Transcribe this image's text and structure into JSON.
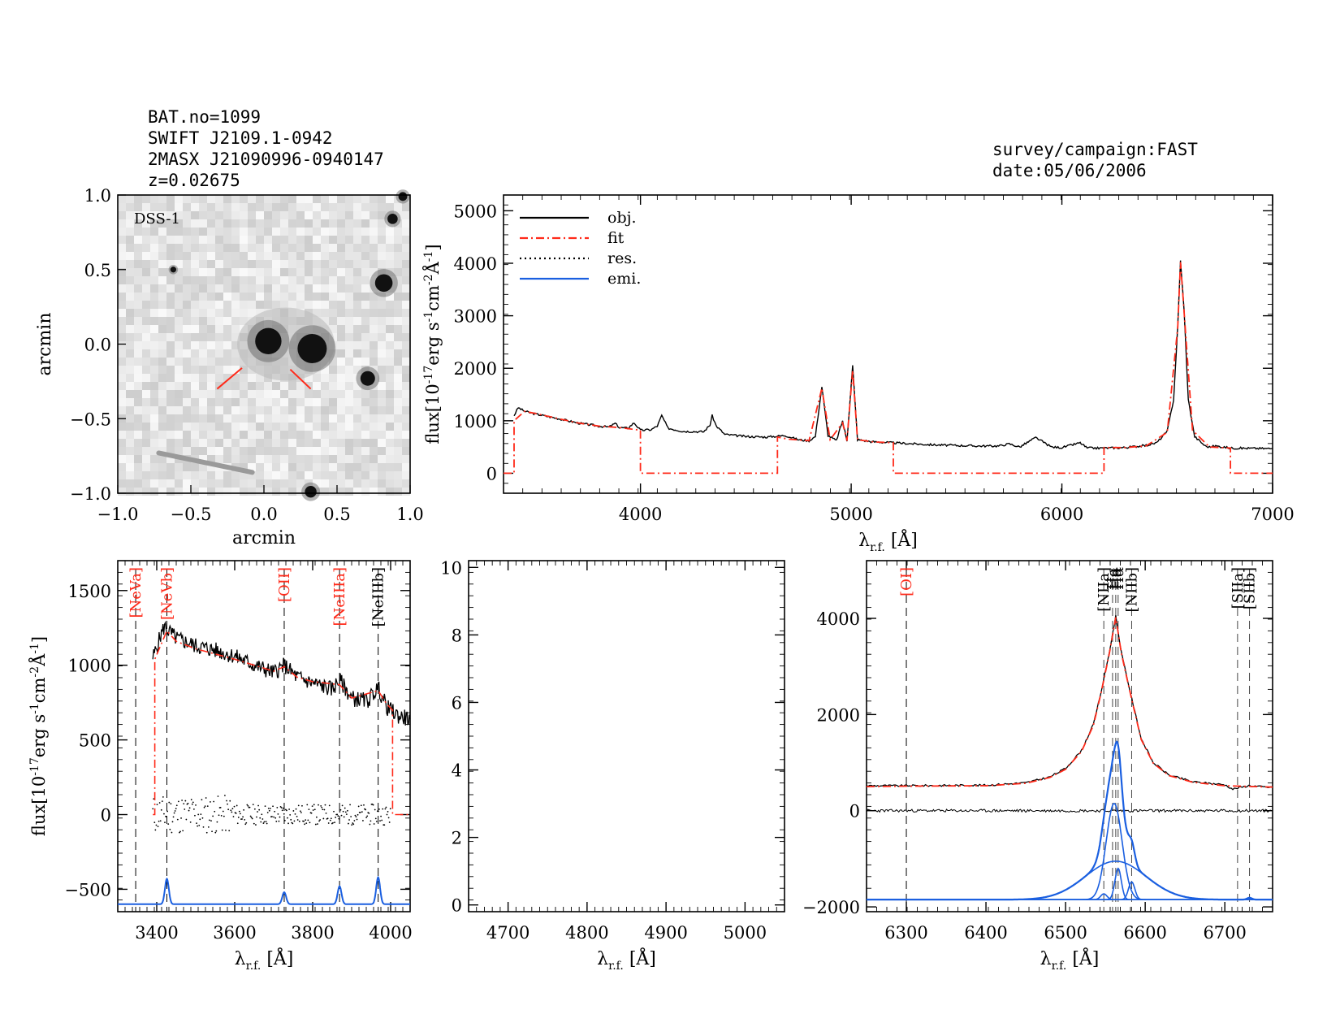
{
  "header": {
    "bat_no": "BAT.no=1099",
    "swift": "SWIFT J2109.1-0942",
    "twomass": "2MASX J21090996-0940147",
    "redshift": "z=0.02675",
    "survey": "survey/campaign:FAST",
    "date": "date:05/06/2006"
  },
  "colors": {
    "obj": "#000000",
    "fit": "#ff2a1a",
    "emi": "#1a5fe0",
    "red_label": "#ff2a1a"
  },
  "chart_data": [
    {
      "id": "dss",
      "type": "image",
      "label": "DSS-1",
      "xlabel": "arcmin",
      "ylabel": "arcmin",
      "xlim": [
        -1.0,
        1.0
      ],
      "ylim": [
        -1.0,
        1.0
      ],
      "xticks": [
        "-1.0",
        "-0.5",
        "0.0",
        "0.5",
        "1.0"
      ],
      "yticks": [
        "1.0",
        "0.5",
        "0.0",
        "-0.5",
        "-1.0"
      ],
      "sources": [
        {
          "x": 0.03,
          "y": 0.02,
          "r": 0.09
        },
        {
          "x": 0.33,
          "y": -0.03,
          "r": 0.1
        },
        {
          "x": 0.82,
          "y": 0.41,
          "r": 0.06
        },
        {
          "x": 0.71,
          "y": -0.23,
          "r": 0.05
        },
        {
          "x": 0.88,
          "y": 0.84,
          "r": 0.035
        },
        {
          "x": 0.95,
          "y": 0.99,
          "r": 0.03
        },
        {
          "x": 0.32,
          "y": -0.99,
          "r": 0.04
        },
        {
          "x": -0.62,
          "y": 0.5,
          "r": 0.02
        }
      ],
      "marker_color": "#ff2a1a"
    },
    {
      "id": "full",
      "type": "line",
      "xlabel": "λr.f. [Å]",
      "ylabel": "flux[10-17erg s-1cm-2Å-1]",
      "xlim": [
        3350,
        7000
      ],
      "ylim": [
        -380,
        5300
      ],
      "xticks": [
        4000,
        5000,
        6000,
        7000
      ],
      "yticks": [
        0,
        1000,
        2000,
        3000,
        4000,
        5000
      ],
      "legend": [
        "obj.",
        "fit",
        "res.",
        "emi."
      ],
      "legend_position": "top-left",
      "obj": [
        [
          3400,
          1100
        ],
        [
          3420,
          1250
        ],
        [
          3450,
          1180
        ],
        [
          3500,
          1130
        ],
        [
          3600,
          1050
        ],
        [
          3700,
          960
        ],
        [
          3800,
          900
        ],
        [
          3850,
          880
        ],
        [
          3880,
          950
        ],
        [
          3900,
          870
        ],
        [
          3940,
          860
        ],
        [
          3970,
          960
        ],
        [
          4000,
          820
        ],
        [
          4050,
          830
        ],
        [
          4080,
          900
        ],
        [
          4101,
          1100
        ],
        [
          4130,
          860
        ],
        [
          4200,
          800
        ],
        [
          4300,
          790
        ],
        [
          4330,
          920
        ],
        [
          4340,
          1100
        ],
        [
          4360,
          900
        ],
        [
          4400,
          740
        ],
        [
          4500,
          700
        ],
        [
          4600,
          690
        ],
        [
          4686,
          720
        ],
        [
          4750,
          640
        ],
        [
          4800,
          620
        ],
        [
          4830,
          700
        ],
        [
          4861,
          1650
        ],
        [
          4890,
          720
        ],
        [
          4930,
          620
        ],
        [
          4959,
          1000
        ],
        [
          4980,
          620
        ],
        [
          5007,
          2050
        ],
        [
          5030,
          640
        ],
        [
          5100,
          600
        ],
        [
          5200,
          580
        ],
        [
          5300,
          560
        ],
        [
          5400,
          540
        ],
        [
          5500,
          530
        ],
        [
          5600,
          520
        ],
        [
          5700,
          520
        ],
        [
          5750,
          560
        ],
        [
          5800,
          500
        ],
        [
          5876,
          680
        ],
        [
          5950,
          500
        ],
        [
          6000,
          490
        ],
        [
          6087,
          580
        ],
        [
          6120,
          480
        ],
        [
          6200,
          480
        ],
        [
          6300,
          490
        ],
        [
          6400,
          530
        ],
        [
          6450,
          580
        ],
        [
          6500,
          800
        ],
        [
          6530,
          1400
        ],
        [
          6550,
          2800
        ],
        [
          6563,
          4050
        ],
        [
          6580,
          3100
        ],
        [
          6600,
          1400
        ],
        [
          6630,
          700
        ],
        [
          6680,
          520
        ],
        [
          6700,
          500
        ],
        [
          6730,
          520
        ],
        [
          6800,
          480
        ],
        [
          7000,
          470
        ]
      ],
      "fit": [
        [
          3350,
          0
        ],
        [
          3400,
          0
        ],
        [
          3400,
          1000
        ],
        [
          3450,
          1180
        ],
        [
          3500,
          1140
        ],
        [
          3600,
          1050
        ],
        [
          3700,
          960
        ],
        [
          3800,
          900
        ],
        [
          3900,
          870
        ],
        [
          4000,
          820
        ],
        [
          4000,
          0
        ],
        [
          4650,
          0
        ],
        [
          4650,
          690
        ],
        [
          4700,
          650
        ],
        [
          4800,
          620
        ],
        [
          4861,
          1620
        ],
        [
          4900,
          640
        ],
        [
          4959,
          960
        ],
        [
          4980,
          620
        ],
        [
          5007,
          1960
        ],
        [
          5030,
          640
        ],
        [
          5100,
          600
        ],
        [
          5200,
          580
        ],
        [
          5200,
          0
        ],
        [
          6200,
          0
        ],
        [
          6200,
          490
        ],
        [
          6300,
          490
        ],
        [
          6400,
          520
        ],
        [
          6500,
          780
        ],
        [
          6550,
          2780
        ],
        [
          6563,
          4020
        ],
        [
          6580,
          3080
        ],
        [
          6620,
          820
        ],
        [
          6700,
          500
        ],
        [
          6800,
          480
        ],
        [
          6800,
          0
        ],
        [
          7000,
          0
        ]
      ],
      "wave_line_range": [
        3350,
        7000
      ]
    },
    {
      "id": "neon",
      "type": "line",
      "xlabel": "λr.f. [Å]",
      "ylabel": "flux[10-17erg s-1cm-2Å-1]",
      "xlim": [
        3300,
        4050
      ],
      "ylim": [
        -650,
        1700
      ],
      "xticks": [
        3400,
        3600,
        3800,
        4000
      ],
      "yticks": [
        -500,
        0,
        500,
        1000,
        1500
      ],
      "lines": [
        {
          "label": "[NeVa]",
          "x": 3346,
          "color": "red"
        },
        {
          "label": "[NeVb]",
          "x": 3426,
          "color": "red"
        },
        {
          "label": "[OII]",
          "x": 3727,
          "color": "red"
        },
        {
          "label": "[NeIIIa]",
          "x": 3869,
          "color": "red"
        },
        {
          "label": "[NeIIIb]",
          "x": 3968,
          "color": "black"
        }
      ],
      "obj": [
        [
          3390,
          1050
        ],
        [
          3400,
          1120
        ],
        [
          3410,
          1200
        ],
        [
          3420,
          1260
        ],
        [
          3426,
          1240
        ],
        [
          3450,
          1180
        ],
        [
          3500,
          1130
        ],
        [
          3550,
          1100
        ],
        [
          3600,
          1060
        ],
        [
          3650,
          1000
        ],
        [
          3700,
          950
        ],
        [
          3727,
          1000
        ],
        [
          3760,
          920
        ],
        [
          3800,
          880
        ],
        [
          3850,
          840
        ],
        [
          3869,
          900
        ],
        [
          3880,
          860
        ],
        [
          3900,
          780
        ],
        [
          3940,
          760
        ],
        [
          3968,
          850
        ],
        [
          3990,
          720
        ],
        [
          4020,
          660
        ],
        [
          4050,
          640
        ]
      ],
      "fit": [
        [
          3390,
          0
        ],
        [
          3395,
          0
        ],
        [
          3395,
          1040
        ],
        [
          3426,
          1230
        ],
        [
          3450,
          1160
        ],
        [
          3500,
          1110
        ],
        [
          3600,
          1040
        ],
        [
          3700,
          960
        ],
        [
          3727,
          990
        ],
        [
          3760,
          920
        ],
        [
          3800,
          890
        ],
        [
          3869,
          870
        ],
        [
          3900,
          780
        ],
        [
          3968,
          830
        ],
        [
          3990,
          740
        ],
        [
          4005,
          700
        ],
        [
          4005,
          0
        ],
        [
          4050,
          0
        ]
      ],
      "residual_range": [
        3390,
        4000
      ],
      "emi_base": -600,
      "emi_peaks": [
        [
          3426,
          170
        ],
        [
          3727,
          80
        ],
        [
          3869,
          120
        ],
        [
          3968,
          180
        ]
      ],
      "emi_sigma": 5
    },
    {
      "id": "empty",
      "type": "line",
      "xlabel": "λr.f. [Å]",
      "ylabel": "",
      "xlim": [
        4650,
        5050
      ],
      "ylim": [
        -0.2,
        10.2
      ],
      "xticks": [
        4700,
        4800,
        4900,
        5000
      ],
      "yticks": [
        0,
        2,
        4,
        6,
        8,
        10
      ]
    },
    {
      "id": "halpha",
      "type": "line",
      "xlabel": "λr.f. [Å]",
      "ylabel": "",
      "xlim": [
        6250,
        6760
      ],
      "ylim": [
        -2100,
        5200
      ],
      "xticks": [
        6300,
        6400,
        6500,
        6600,
        6700
      ],
      "yticks": [
        -2000,
        0,
        2000,
        4000
      ],
      "lines": [
        {
          "label": "[OI]",
          "x": 6300,
          "color": "red"
        },
        {
          "label": "[NIIa]",
          "x": 6548,
          "color": "black"
        },
        {
          "label": "Hα",
          "x": 6559,
          "color": "black"
        },
        {
          "label": "Hα",
          "x": 6563,
          "color": "black"
        },
        {
          "label": "Hα",
          "x": 6566,
          "color": "black"
        },
        {
          "label": "[NIIb]",
          "x": 6583,
          "color": "black"
        },
        {
          "label": "[SIIa]",
          "x": 6716,
          "color": "black"
        },
        {
          "label": "[SIIb]",
          "x": 6731,
          "color": "black"
        }
      ],
      "obj": [
        [
          6250,
          520
        ],
        [
          6300,
          520
        ],
        [
          6400,
          530
        ],
        [
          6450,
          580
        ],
        [
          6480,
          700
        ],
        [
          6500,
          880
        ],
        [
          6520,
          1250
        ],
        [
          6535,
          1800
        ],
        [
          6545,
          2500
        ],
        [
          6555,
          3300
        ],
        [
          6563,
          4050
        ],
        [
          6570,
          3300
        ],
        [
          6578,
          2700
        ],
        [
          6585,
          2200
        ],
        [
          6595,
          1500
        ],
        [
          6610,
          1000
        ],
        [
          6630,
          740
        ],
        [
          6660,
          600
        ],
        [
          6700,
          540
        ],
        [
          6710,
          450
        ],
        [
          6730,
          520
        ],
        [
          6760,
          480
        ]
      ],
      "fit": [
        [
          6250,
          500
        ],
        [
          6300,
          510
        ],
        [
          6400,
          520
        ],
        [
          6450,
          570
        ],
        [
          6480,
          690
        ],
        [
          6500,
          860
        ],
        [
          6520,
          1230
        ],
        [
          6535,
          1780
        ],
        [
          6545,
          2480
        ],
        [
          6555,
          3270
        ],
        [
          6563,
          4020
        ],
        [
          6570,
          3280
        ],
        [
          6578,
          2680
        ],
        [
          6585,
          2180
        ],
        [
          6595,
          1480
        ],
        [
          6610,
          990
        ],
        [
          6630,
          730
        ],
        [
          6660,
          590
        ],
        [
          6700,
          520
        ],
        [
          6760,
          490
        ]
      ],
      "emi_base": -1850,
      "emi_components": [
        {
          "center": 6561,
          "amp": 2000,
          "sigma": 10
        },
        {
          "center": 6563,
          "amp": 800,
          "sigma": 38
        },
        {
          "center": 6566,
          "amp": 650,
          "sigma": 4
        },
        {
          "center": 6583,
          "amp": 370,
          "sigma": 4
        },
        {
          "center": 6548,
          "amp": 120,
          "sigma": 4
        },
        {
          "center": 6731,
          "amp": 40,
          "sigma": 3
        }
      ]
    }
  ]
}
